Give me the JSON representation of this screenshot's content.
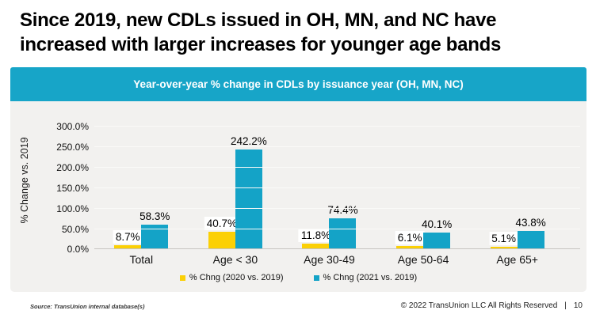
{
  "slide": {
    "title_lines": [
      "Since 2019, new CDLs issued in OH, MN, and NC have",
      "increased with larger increases for younger age bands"
    ]
  },
  "chart": {
    "banner_title": "Year-over-year % change in CDLs by issuance year (OH, MN, NC)"
  },
  "chart_data": {
    "type": "bar",
    "title": "Year-over-year % change in CDLs by issuance year (OH, MN, NC)",
    "xlabel": "",
    "ylabel": "% Change vs. 2019",
    "ylim": [
      0,
      300
    ],
    "grid": true,
    "legend_position": "bottom",
    "categories": [
      "Total",
      "Age < 30",
      "Age 30-49",
      "Age 50-64",
      "Age 65+"
    ],
    "yticks": [
      0,
      50,
      100,
      150,
      200,
      250,
      300
    ],
    "ytick_labels": [
      "0.0%",
      "50.0%",
      "100.0%",
      "150.0%",
      "200.0%",
      "250.0%",
      "300.0%"
    ],
    "series": [
      {
        "name": "% Chng (2020 vs. 2019)",
        "color": "#FBD005",
        "values": [
          8.7,
          40.7,
          11.8,
          6.1,
          5.1
        ],
        "labels": [
          "8.7%",
          "40.7%",
          "11.8%",
          "6.1%",
          "5.1%"
        ]
      },
      {
        "name": "% Chng (2021 vs. 2019)",
        "color": "#14A3C7",
        "values": [
          58.3,
          242.2,
          74.4,
          40.1,
          43.8
        ],
        "labels": [
          "58.3%",
          "242.2%",
          "74.4%",
          "40.1%",
          "43.8%"
        ]
      }
    ]
  },
  "colors": {
    "banner_bg": "#17A5C8",
    "panel_bg": "#F2F1EF",
    "series_2020": "#FBD005",
    "series_2021": "#14A3C7"
  },
  "footer": {
    "source": "Source: TransUnion internal database(s)",
    "copyright": "© 2022 TransUnion LLC All Rights Reserved",
    "separator": "|",
    "page_number": "10"
  }
}
